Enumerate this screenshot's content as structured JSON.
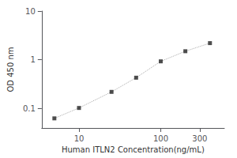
{
  "chart_data": {
    "type": "line",
    "log": true,
    "xlabel": "Human ITLN2 Concentration(ng/mL)",
    "ylabel": "OD 450 nm",
    "x": [
      5,
      10,
      25,
      50,
      100,
      200,
      400
    ],
    "series": [
      {
        "type": "line",
        "color": "#aaaaaa",
        "line_style": "dotted",
        "marker": "none",
        "values": [
          0.063,
          0.103,
          0.22,
          0.43,
          0.93,
          1.5,
          2.2
        ]
      },
      {
        "type": "scatter",
        "color": "#222222",
        "marker": "square",
        "values": [
          0.063,
          0.103,
          0.22,
          0.43,
          0.93,
          1.5,
          2.2
        ]
      }
    ],
    "xlim": [
      3.5,
      600
    ],
    "ylim": [
      0.04,
      10
    ],
    "xticks": [
      10,
      100,
      300
    ],
    "yticks": [
      0.1,
      1,
      10
    ],
    "grid": false
  }
}
